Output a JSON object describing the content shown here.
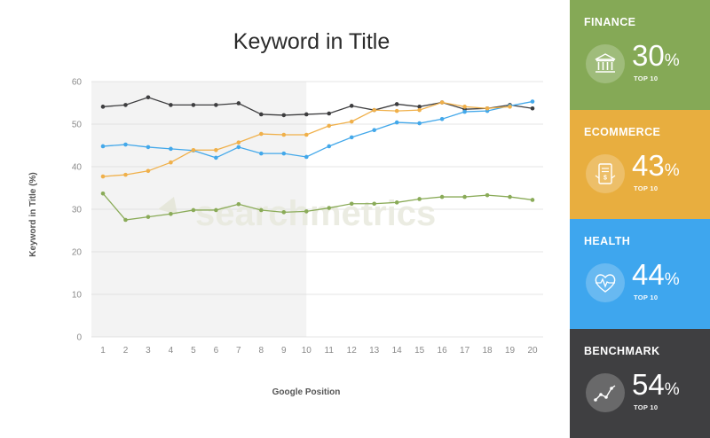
{
  "chart_data": {
    "type": "line",
    "title": "Keyword in Title",
    "xlabel": "Google Position",
    "ylabel": "Keyword in Title (%)",
    "x": [
      1,
      2,
      3,
      4,
      5,
      6,
      7,
      8,
      9,
      10,
      11,
      12,
      13,
      14,
      15,
      16,
      17,
      18,
      19,
      20
    ],
    "ylim": [
      0,
      60
    ],
    "yticks": [
      0,
      10,
      20,
      30,
      40,
      50,
      60
    ],
    "grid": true,
    "highlight_range": [
      1,
      10
    ],
    "watermark": "searchmetrics",
    "series": [
      {
        "name": "Benchmark",
        "color": "#3d3d3f",
        "values": [
          54.1,
          54.5,
          56.3,
          54.5,
          54.5,
          54.5,
          54.9,
          52.3,
          52.1,
          52.3,
          52.5,
          54.3,
          53.3,
          54.7,
          54.1,
          55.1,
          53.5,
          53.7,
          54.5,
          53.7
        ]
      },
      {
        "name": "Health",
        "color": "#43a8ea",
        "values": [
          44.8,
          45.2,
          44.6,
          44.2,
          43.8,
          42.1,
          44.6,
          43.1,
          43.1,
          42.3,
          44.8,
          46.9,
          48.6,
          50.4,
          50.2,
          51.2,
          52.9,
          53.1,
          54.3,
          55.3
        ]
      },
      {
        "name": "Ecommerce",
        "color": "#f0b04a",
        "values": [
          37.7,
          38.1,
          39.0,
          41.0,
          43.9,
          43.9,
          45.7,
          47.7,
          47.5,
          47.5,
          49.6,
          50.6,
          53.3,
          53.1,
          53.3,
          55.1,
          54.1,
          53.7,
          54.1,
          null
        ]
      },
      {
        "name": "Finance",
        "color": "#8aab58",
        "values": [
          33.7,
          27.5,
          28.2,
          28.9,
          29.8,
          29.8,
          31.2,
          29.8,
          29.3,
          29.5,
          30.3,
          31.3,
          31.3,
          31.6,
          32.4,
          32.9,
          32.9,
          33.3,
          32.9,
          32.2
        ]
      }
    ]
  },
  "panel": [
    {
      "category": "FINANCE",
      "value": "30",
      "unit": "%",
      "sub": "TOP 10",
      "color": "#85a956",
      "icon": "bank-icon"
    },
    {
      "category": "ECOMMERCE",
      "value": "43",
      "unit": "%",
      "sub": "TOP 10",
      "color": "#e8ae3f",
      "icon": "receipt-icon"
    },
    {
      "category": "HEALTH",
      "value": "44",
      "unit": "%",
      "sub": "TOP 10",
      "color": "#3ea6ee",
      "icon": "heart-pulse-icon"
    },
    {
      "category": "BENCHMARK",
      "value": "54",
      "unit": "%",
      "sub": "TOP 10",
      "color": "#3f3f41",
      "icon": "line-graph-icon"
    }
  ]
}
